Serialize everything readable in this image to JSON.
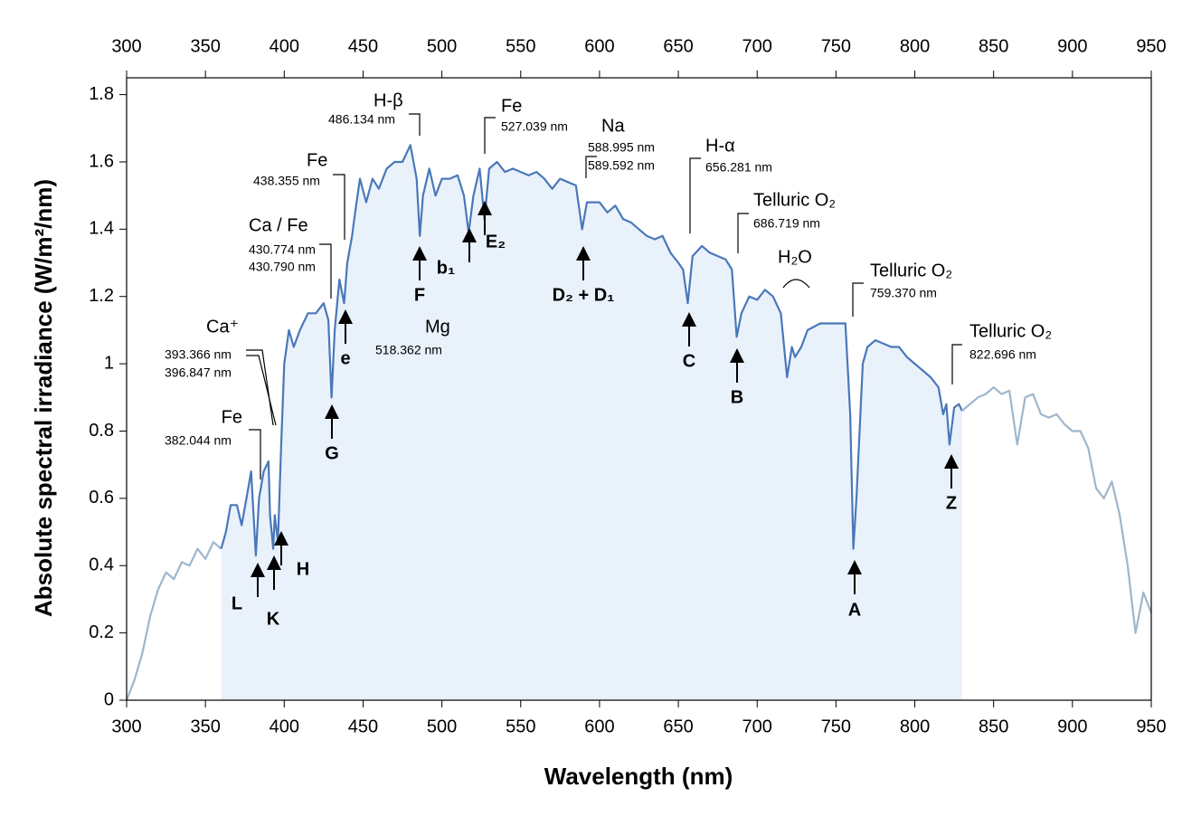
{
  "chart_data": {
    "type": "line",
    "xlabel": "Wavelength (nm)",
    "ylabel": "Absolute spectral irradiance (W/m²/nm)",
    "xlim": [
      300,
      950
    ],
    "xticks": [
      300,
      350,
      400,
      450,
      500,
      550,
      600,
      650,
      700,
      750,
      800,
      850,
      900,
      950
    ],
    "ylim": [
      0,
      1.85
    ],
    "yticks": [
      0,
      0.2,
      0.4,
      0.6,
      0.8,
      1,
      1.2,
      1.4,
      1.6,
      1.8
    ],
    "series": [
      {
        "color": "#9fb6cc",
        "x": [
          300,
          305,
          310,
          315,
          320,
          325,
          330,
          335,
          340,
          345,
          350,
          355,
          360
        ],
        "values": [
          0.0,
          0.06,
          0.14,
          0.25,
          0.33,
          0.38,
          0.36,
          0.41,
          0.4,
          0.45,
          0.42,
          0.47,
          0.45
        ]
      },
      {
        "color": "#4a78b8",
        "fill": "#e9f1fb",
        "x": [
          360,
          363,
          366,
          370,
          373,
          376,
          379,
          382,
          384,
          387,
          390,
          391,
          393,
          394,
          396,
          398,
          400,
          403,
          406,
          410,
          415,
          420,
          425,
          428,
          430,
          432,
          435,
          438,
          440,
          443,
          445,
          448,
          452,
          456,
          460,
          465,
          470,
          475,
          480,
          484,
          486,
          488,
          492,
          496,
          500,
          505,
          510,
          514,
          517,
          520,
          524,
          527,
          530,
          535,
          540,
          545,
          550,
          555,
          560,
          565,
          570,
          575,
          580,
          585,
          589,
          592,
          600,
          605,
          610,
          615,
          620,
          625,
          630,
          635,
          640,
          645,
          650,
          653,
          656,
          659,
          665,
          670,
          675,
          680,
          684,
          687,
          690,
          695,
          700,
          705,
          710,
          715,
          719,
          722,
          724,
          728,
          732,
          740,
          750,
          756,
          759,
          761,
          763,
          767,
          770,
          775,
          780,
          785,
          790,
          795,
          800,
          805,
          810,
          815,
          818,
          820,
          822,
          825,
          828,
          830
        ],
        "values": [
          0.45,
          0.5,
          0.58,
          0.58,
          0.52,
          0.6,
          0.68,
          0.43,
          0.6,
          0.68,
          0.71,
          0.55,
          0.45,
          0.55,
          0.47,
          0.75,
          1.0,
          1.1,
          1.05,
          1.1,
          1.15,
          1.15,
          1.18,
          1.13,
          0.9,
          1.1,
          1.25,
          1.18,
          1.3,
          1.38,
          1.45,
          1.55,
          1.48,
          1.55,
          1.52,
          1.58,
          1.6,
          1.6,
          1.65,
          1.55,
          1.38,
          1.5,
          1.58,
          1.5,
          1.55,
          1.55,
          1.56,
          1.5,
          1.39,
          1.5,
          1.58,
          1.43,
          1.58,
          1.6,
          1.57,
          1.58,
          1.57,
          1.56,
          1.57,
          1.55,
          1.52,
          1.55,
          1.54,
          1.53,
          1.4,
          1.48,
          1.48,
          1.45,
          1.47,
          1.43,
          1.42,
          1.4,
          1.38,
          1.37,
          1.38,
          1.33,
          1.3,
          1.28,
          1.18,
          1.32,
          1.35,
          1.33,
          1.32,
          1.31,
          1.28,
          1.08,
          1.15,
          1.2,
          1.19,
          1.22,
          1.2,
          1.15,
          0.96,
          1.05,
          1.02,
          1.05,
          1.1,
          1.12,
          1.12,
          1.12,
          0.85,
          0.45,
          0.6,
          1.0,
          1.05,
          1.07,
          1.06,
          1.05,
          1.05,
          1.02,
          1.0,
          0.98,
          0.96,
          0.93,
          0.85,
          0.88,
          0.76,
          0.87,
          0.88,
          0.86
        ]
      },
      {
        "color": "#9fb6cc",
        "x": [
          830,
          835,
          840,
          845,
          850,
          855,
          860,
          865,
          870,
          875,
          880,
          885,
          890,
          895,
          900,
          905,
          910,
          915,
          920,
          925,
          930,
          935,
          940,
          945,
          950
        ],
        "values": [
          0.86,
          0.88,
          0.9,
          0.91,
          0.93,
          0.91,
          0.92,
          0.76,
          0.9,
          0.91,
          0.85,
          0.84,
          0.85,
          0.82,
          0.8,
          0.8,
          0.75,
          0.63,
          0.6,
          0.65,
          0.55,
          0.4,
          0.2,
          0.32,
          0.26
        ]
      }
    ],
    "labels": [
      "Fe",
      "382.044 nm",
      "Ca⁺",
      "393.366 nm",
      "396.847 nm",
      "Ca / Fe",
      "430.774 nm",
      "430.790 nm",
      "Fe",
      "438.355 nm",
      "H-β",
      "486.134 nm",
      "Fe",
      "527.039 nm",
      "Na",
      "588.995 nm",
      "589.592 nm",
      "H-α",
      "656.281 nm",
      "Telluric O₂",
      "686.719 nm",
      "H₂O",
      "Telluric O₂",
      "759.370 nm",
      "Telluric O₂",
      "822.696 nm",
      "Mg",
      "518.362 nm"
    ],
    "lines": [
      "L",
      "K",
      "H",
      "G",
      "e",
      "F",
      "b₁",
      "E₂",
      "D₂ + D₁",
      "C",
      "B",
      "A",
      "Z"
    ]
  }
}
